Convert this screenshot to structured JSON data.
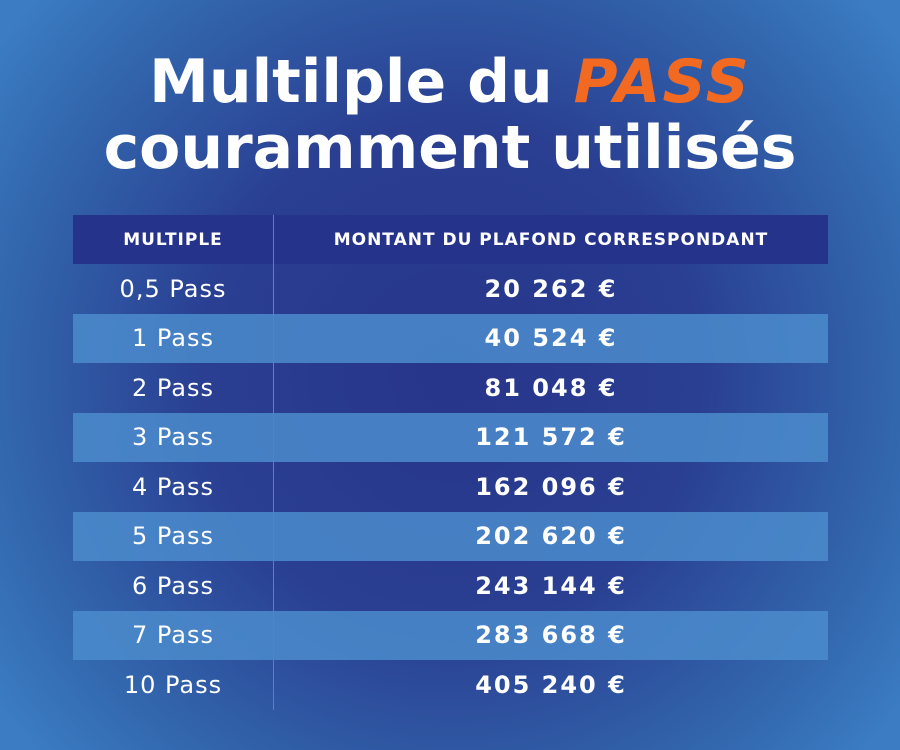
{
  "title": {
    "line1_prefix": "Multilple du ",
    "line1_highlight": "PASS",
    "line2": "couramment utilisés",
    "highlight_color": "#f26a21"
  },
  "table": {
    "headers": [
      "MULTIPLE",
      "MONTANT DU PLAFOND CORRESPONDANT"
    ],
    "rows": [
      {
        "multiple": "0,5 Pass",
        "amount": "20 262 €"
      },
      {
        "multiple": "1 Pass",
        "amount": "40 524 €"
      },
      {
        "multiple": "2 Pass",
        "amount": "81 048 €"
      },
      {
        "multiple": "3 Pass",
        "amount": "121 572 €"
      },
      {
        "multiple": "4 Pass",
        "amount": "162 096 €"
      },
      {
        "multiple": "5 Pass",
        "amount": "202 620 €"
      },
      {
        "multiple": "6 Pass",
        "amount": "243 144 €"
      },
      {
        "multiple": "7 Pass",
        "amount": "283 668 €"
      },
      {
        "multiple": "10 Pass",
        "amount": "405 240 €"
      }
    ]
  }
}
